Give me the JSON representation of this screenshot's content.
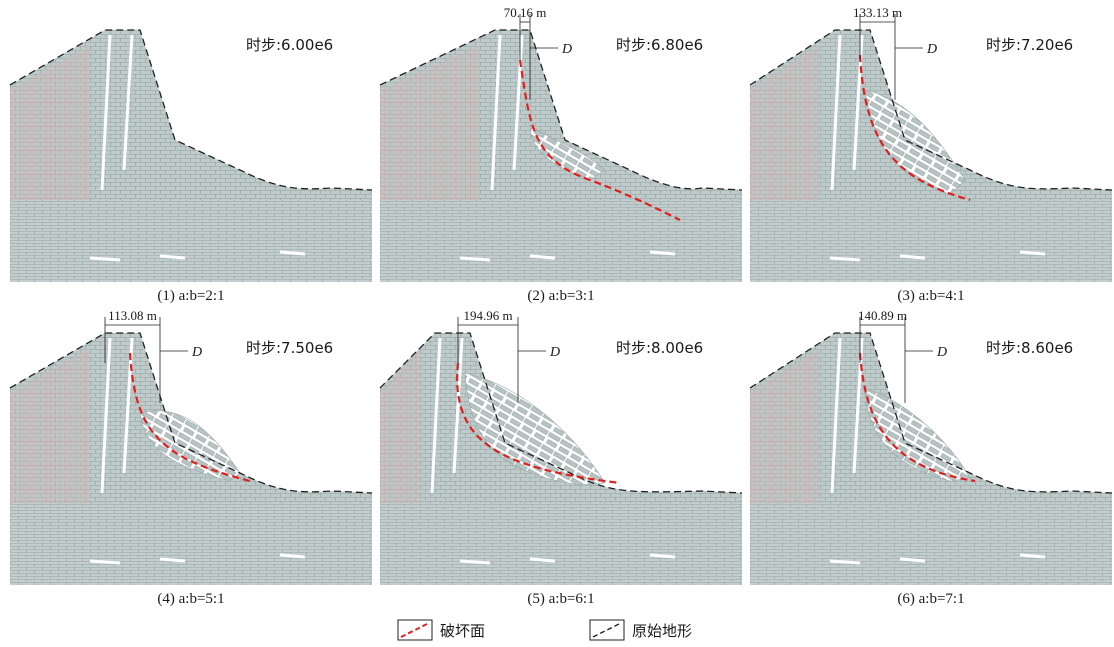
{
  "panels": [
    {
      "caption": "(1) a:b=2:1",
      "time_step": "时步:6.00e6",
      "width_label": "",
      "d_label": "",
      "color": "#bfcaca"
    },
    {
      "caption": "(2) a:b=3:1",
      "time_step": "时步:6.80e6",
      "width_label": "70.16 m",
      "d_label": "D",
      "color": "#bfcaca"
    },
    {
      "caption": "(3) a:b=4:1",
      "time_step": "时步:7.20e6",
      "width_label": "133.13 m",
      "d_label": "D",
      "color": "#bfcaca"
    },
    {
      "caption": "(4) a:b=5:1",
      "time_step": "时步:7.50e6",
      "width_label": "113.08 m",
      "d_label": "D",
      "color": "#bfcaca"
    },
    {
      "caption": "(5) a:b=6:1",
      "time_step": "时步:8.00e6",
      "width_label": "194.96 m",
      "d_label": "D",
      "color": "#bfcaca"
    },
    {
      "caption": "(6) a:b=7:1",
      "time_step": "时步:8.60e6",
      "width_label": "140.89 m",
      "d_label": "D",
      "color": "#bfcaca"
    }
  ],
  "legend": {
    "failure_surface": "破坏面",
    "original_terrain": "原始地形"
  },
  "colors": {
    "rock": "#bfcaca",
    "rock_pink": "#e7b8b4",
    "joint": "#8a9a9a",
    "failure_line": "#e02020",
    "terrain_line": "#222222"
  }
}
